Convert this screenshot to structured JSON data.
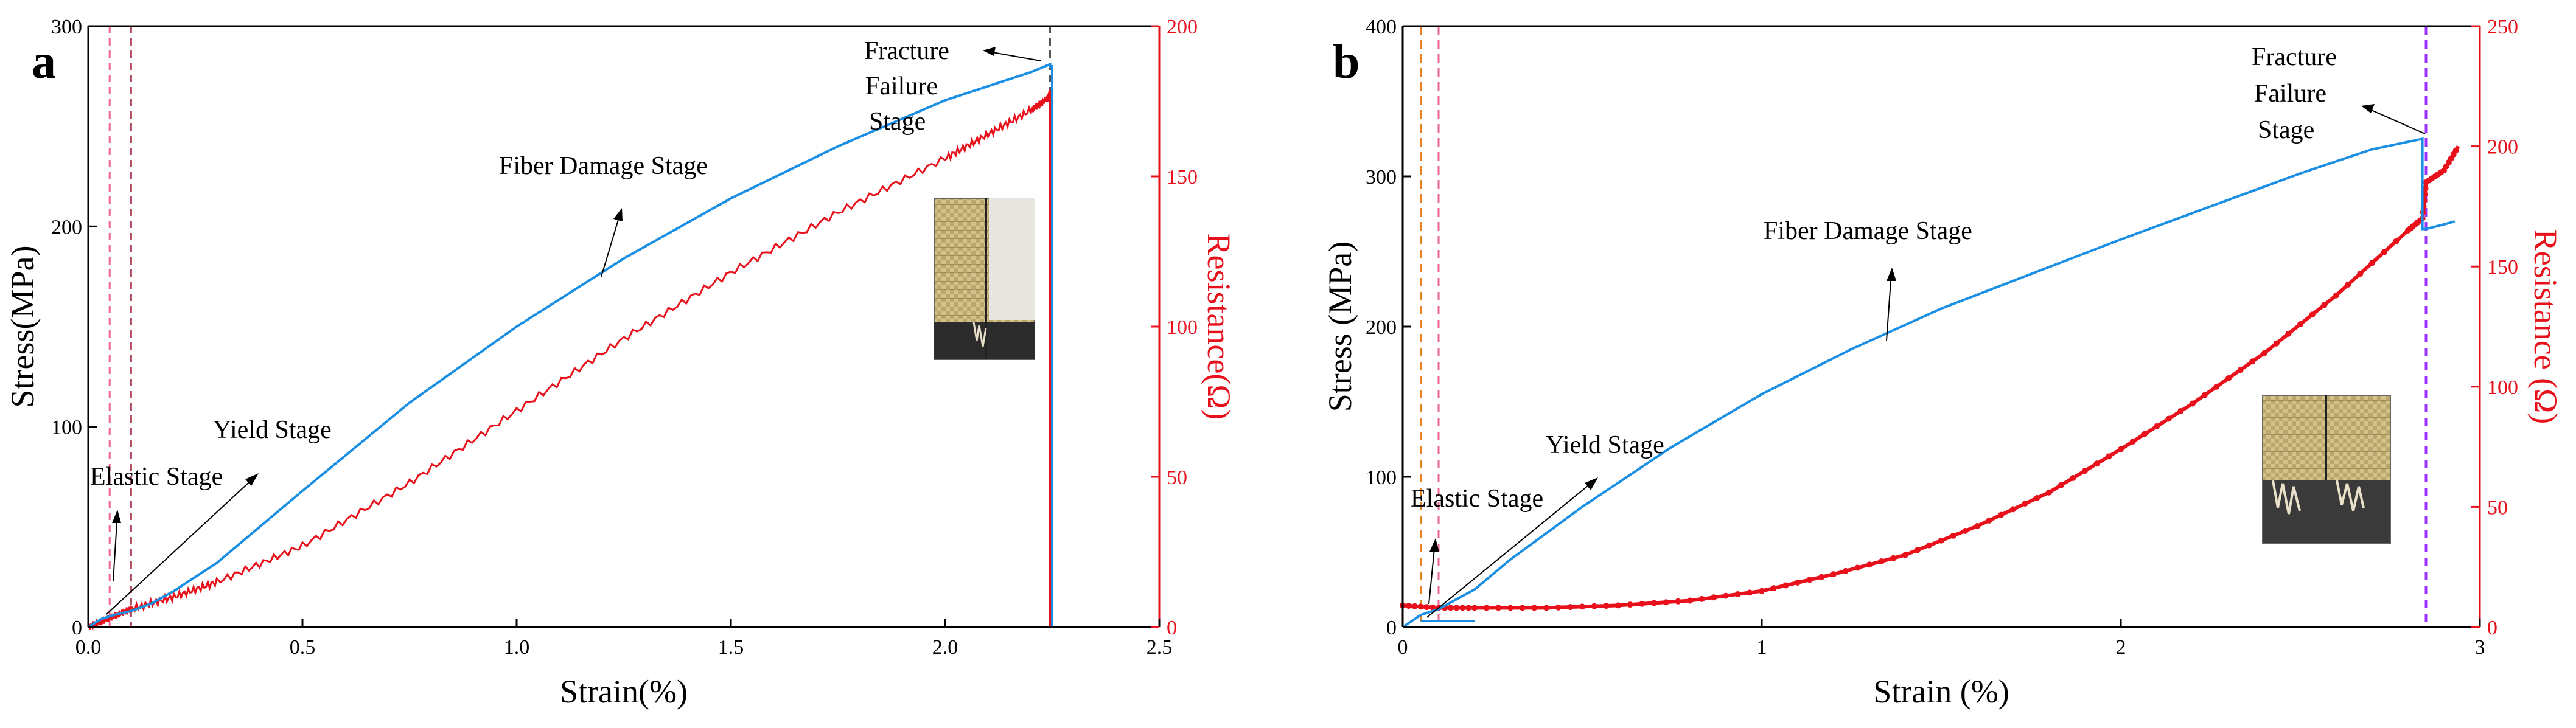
{
  "chart_data": [
    {
      "panel": "a",
      "type": "line",
      "xlabel": "Strain(%)",
      "ylabel_left": "Stress(MPa)",
      "ylabel_right": "Resistance(Ω)",
      "xlim": [
        0,
        2.5
      ],
      "ylim_left": [
        0,
        300
      ],
      "ylim_right": [
        0,
        200
      ],
      "xticks": [
        0.0,
        0.5,
        1.0,
        1.5,
        2.0,
        2.5
      ],
      "xtick_labels": [
        "0.0",
        "0.5",
        "1.0",
        "1.5",
        "2.0",
        "2.5"
      ],
      "yticks_left": [
        0,
        100,
        200,
        300
      ],
      "ytick_labels_left": [
        "0",
        "100",
        "200",
        "300"
      ],
      "yticks_right": [
        0,
        50,
        100,
        150,
        200
      ],
      "ytick_labels_right": [
        "0",
        "50",
        "100",
        "150",
        "200"
      ],
      "series": [
        {
          "name": "Stress",
          "axis": "left",
          "color": "#1a8fe3",
          "x": [
            0,
            0.03,
            0.06,
            0.1,
            0.15,
            0.2,
            0.3,
            0.5,
            0.75,
            1.0,
            1.25,
            1.5,
            1.75,
            2.0,
            2.1,
            2.2,
            2.245,
            2.245,
            2.25,
            2.25
          ],
          "y": [
            0,
            4,
            6,
            8,
            12,
            18,
            32,
            68,
            112,
            150,
            184,
            214,
            240,
            263,
            270,
            277,
            281,
            280,
            280,
            0
          ]
        },
        {
          "name": "Resistance",
          "axis": "right",
          "color": "#e8111b",
          "x": [
            0,
            0.05,
            0.1,
            0.2,
            0.3,
            0.5,
            0.75,
            1.0,
            1.25,
            1.5,
            1.75,
            2.0,
            2.1,
            2.2,
            2.24,
            2.245,
            2.245
          ],
          "y": [
            0,
            3,
            6,
            10,
            15,
            27,
            48,
            72,
            96,
            118,
            138,
            156,
            164,
            172,
            176,
            178,
            0
          ],
          "noise_amplitude": 1.2
        }
      ],
      "vlines": [
        {
          "x": 0.05,
          "color": "#f06292",
          "style": "dashed"
        },
        {
          "x": 0.1,
          "color": "#b24a5e",
          "style": "dashed"
        },
        {
          "x": 2.245,
          "color": "#555555",
          "style": "dashed"
        }
      ],
      "annotations": [
        {
          "text": "Elastic Stage"
        },
        {
          "text": "Yield Stage"
        },
        {
          "text": "Fiber Damage Stage"
        },
        {
          "text": "Fracture"
        },
        {
          "text": "Failure"
        },
        {
          "text": "Stage"
        }
      ],
      "inset": "photo of fractured fabric specimen"
    },
    {
      "panel": "b",
      "type": "line",
      "xlabel": "Strain (%)",
      "ylabel_left": "Stress (MPa)",
      "ylabel_right": "Resistance (Ω)",
      "xlim": [
        0,
        3
      ],
      "ylim_left": [
        0,
        400
      ],
      "ylim_right": [
        0,
        250
      ],
      "xticks": [
        0,
        1,
        2,
        3
      ],
      "xtick_labels": [
        "0",
        "1",
        "2",
        "3"
      ],
      "yticks_left": [
        0,
        100,
        200,
        300,
        400
      ],
      "ytick_labels_left": [
        "0",
        "100",
        "200",
        "300",
        "400"
      ],
      "yticks_right": [
        0,
        50,
        100,
        150,
        200,
        250
      ],
      "ytick_labels_right": [
        "0",
        "50",
        "100",
        "150",
        "200",
        "250"
      ],
      "series": [
        {
          "name": "Stress",
          "axis": "left",
          "color": "#1a8fe3",
          "x": [
            0,
            0.05,
            0.1,
            0.2,
            0.3,
            0.5,
            0.75,
            1.0,
            1.25,
            1.5,
            1.75,
            2.0,
            2.25,
            2.5,
            2.7,
            2.8,
            2.84,
            2.84,
            2.85,
            2.9,
            2.93
          ],
          "y": [
            0,
            8,
            12,
            25,
            45,
            80,
            120,
            155,
            185,
            212,
            235,
            258,
            280,
            302,
            318,
            323,
            325,
            265,
            265,
            268,
            270
          ],
          "extra_segment": {
            "x": [
              0.05,
              0.2
            ],
            "y": [
              4,
              4
            ]
          }
        },
        {
          "name": "Resistance",
          "axis": "right",
          "color": "#e8111b",
          "x": [
            0,
            0.1,
            0.2,
            0.4,
            0.6,
            0.8,
            1.0,
            1.2,
            1.4,
            1.6,
            1.8,
            2.0,
            2.2,
            2.4,
            2.6,
            2.8,
            2.84,
            2.85,
            2.9,
            2.94
          ],
          "y": [
            9,
            8,
            8,
            8,
            9,
            11,
            15,
            22,
            30,
            42,
            56,
            74,
            93,
            114,
            138,
            165,
            170,
            185,
            190,
            200
          ],
          "marker": "dot"
        }
      ],
      "vlines": [
        {
          "x": 0.05,
          "color": "#e8821e",
          "style": "dashed"
        },
        {
          "x": 0.1,
          "color": "#f06292",
          "style": "dashed"
        },
        {
          "x": 2.85,
          "color": "#9b30ff",
          "style": "dashed"
        }
      ],
      "annotations": [
        {
          "text": "Elastic Stage"
        },
        {
          "text": "Yield Stage"
        },
        {
          "text": "Fiber Damage Stage"
        },
        {
          "text": "Fracture"
        },
        {
          "text": "Failure"
        },
        {
          "text": "Stage"
        }
      ],
      "inset": "photo of fractured fabric specimen"
    }
  ]
}
